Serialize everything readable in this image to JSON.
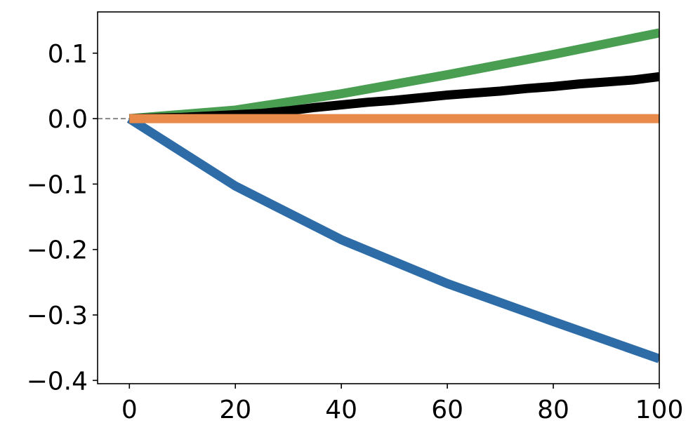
{
  "chart_data": {
    "type": "line",
    "title": "",
    "xlabel": "",
    "ylabel": "",
    "xlim": [
      -6,
      100
    ],
    "ylim": [
      -0.405,
      0.163
    ],
    "xticks": [
      0,
      20,
      40,
      60,
      80,
      100
    ],
    "xtick_labels": [
      "0",
      "20",
      "40",
      "60",
      "80",
      "100"
    ],
    "yticks": [
      0.1,
      0.0,
      -0.1,
      -0.2,
      -0.3,
      -0.4
    ],
    "ytick_labels": [
      "0.1",
      "0.0",
      "−0.1",
      "−0.2",
      "−0.3",
      "−0.4"
    ],
    "grid": false,
    "legend": "none",
    "reference_line": {
      "y": 0,
      "style": "dashed",
      "color": "#888888"
    },
    "series": [
      {
        "color": "#2e6ca8",
        "band_color": "#c9d6ec",
        "x": [
          0,
          20,
          40,
          60,
          80,
          100
        ],
        "y": [
          0.0,
          -0.103,
          -0.185,
          -0.252,
          -0.31,
          -0.367
        ],
        "band_lower": [
          0.0,
          -0.104,
          -0.186,
          -0.253,
          -0.312,
          -0.372
        ],
        "band_upper": [
          0.0,
          -0.102,
          -0.184,
          -0.251,
          -0.307,
          -0.36
        ]
      },
      {
        "color": "#4a9e52",
        "x": [
          0,
          20,
          40,
          60,
          80,
          100
        ],
        "y": [
          0.0,
          0.013,
          0.038,
          0.067,
          0.098,
          0.131
        ]
      },
      {
        "color": "#000000",
        "x": [
          0,
          5,
          10,
          15,
          20,
          25,
          30,
          35,
          40,
          45,
          50,
          55,
          60,
          65,
          70,
          75,
          80,
          85,
          90,
          95,
          100
        ],
        "y": [
          0.0,
          0.001,
          0.002,
          0.004,
          0.006,
          0.008,
          0.012,
          0.017,
          0.021,
          0.025,
          0.028,
          0.032,
          0.036,
          0.039,
          0.042,
          0.046,
          0.049,
          0.053,
          0.056,
          0.059,
          0.064
        ]
      },
      {
        "color": "#e88a4a",
        "x": [
          0,
          100
        ],
        "y": [
          0.0,
          0.0
        ]
      }
    ]
  }
}
